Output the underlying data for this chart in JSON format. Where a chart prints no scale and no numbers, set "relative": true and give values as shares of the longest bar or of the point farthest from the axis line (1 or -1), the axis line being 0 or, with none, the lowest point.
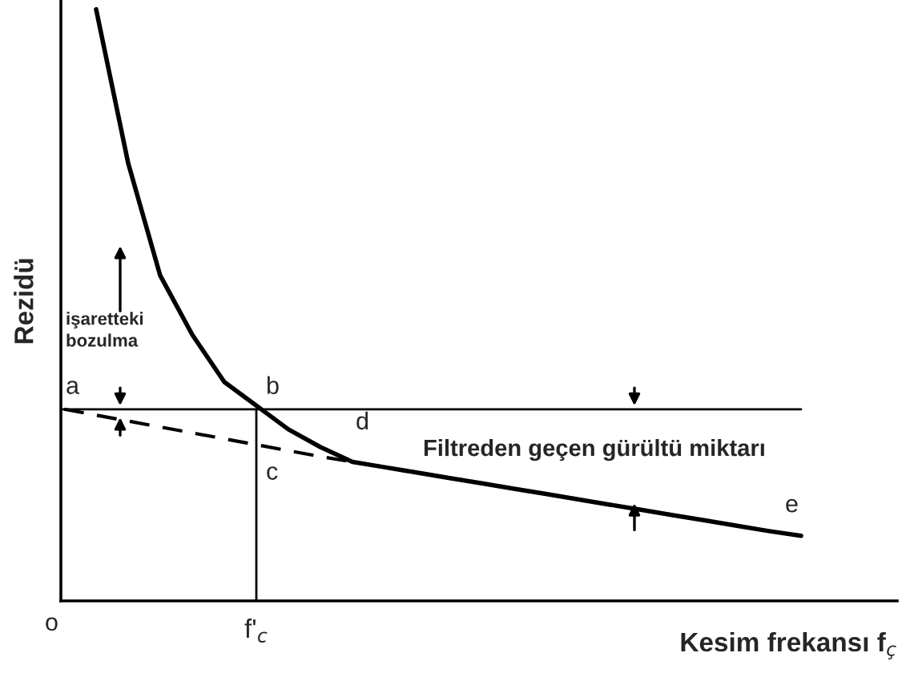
{
  "chart_data": {
    "type": "line",
    "relative": true,
    "xlabel": "Kesim frekansı f$_{ç}$",
    "ylabel": "Rezidü",
    "categories": [
      null,
      null,
      null,
      null,
      null,
      null,
      null,
      null,
      null,
      null,
      null,
      null,
      null,
      null,
      null,
      null,
      null,
      null,
      null,
      null,
      null,
      null,
      null,
      null
    ],
    "series": [
      {
        "color": "#000000",
        "line_style": "solid",
        "values": [
          null,
          1.0,
          0.74,
          0.55,
          0.45,
          0.37,
          0.33,
          0.29,
          0.26,
          0.235,
          0.226,
          0.217,
          0.208,
          0.199,
          0.19,
          0.181,
          0.172,
          0.163,
          0.154,
          0.145,
          0.136,
          0.127,
          0.118,
          0.11
        ]
      },
      {
        "color": "#000000",
        "line_style": "dashed",
        "values": [
          0.324,
          0.314,
          0.304,
          0.294,
          0.284,
          0.274,
          0.264,
          0.254,
          0.244,
          0.235,
          null,
          null,
          null,
          null,
          null,
          null,
          null,
          null,
          null,
          null,
          null,
          null,
          null,
          null
        ]
      }
    ],
    "ref_lines": [
      {
        "axis": "y",
        "value": 0.324,
        "color": "#000000"
      }
    ],
    "annotations": [
      "a",
      "b",
      "c",
      "d",
      "e",
      "o",
      "işaretteki\nbozulma",
      "Filtreden geçen gürültü miktarı",
      "f'$_{c}$"
    ],
    "legend": false,
    "marker": "none"
  }
}
